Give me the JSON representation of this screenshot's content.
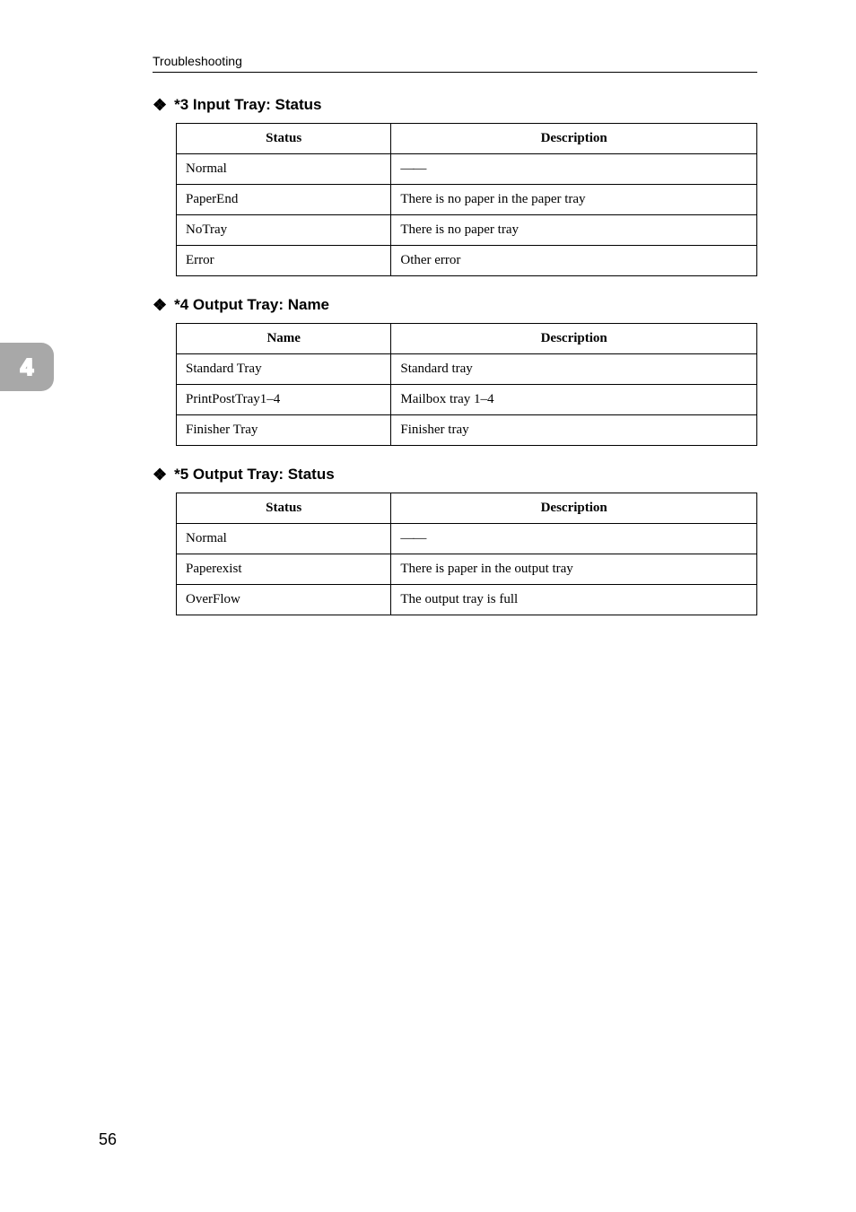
{
  "running_header": "Troubleshooting",
  "side_tab": "4",
  "page_number": "56",
  "sections": {
    "s3": {
      "heading": "*3 Input Tray: Status",
      "col_left": "Status",
      "col_right": "Description",
      "rows": [
        {
          "left": "Normal",
          "right": "——"
        },
        {
          "left": "PaperEnd",
          "right": "There is no paper in the paper tray"
        },
        {
          "left": "NoTray",
          "right": "There is no paper tray"
        },
        {
          "left": "Error",
          "right": "Other error"
        }
      ]
    },
    "s4": {
      "heading": "*4 Output Tray: Name",
      "col_left": "Name",
      "col_right": "Description",
      "rows": [
        {
          "left": "Standard Tray",
          "right": "Standard tray"
        },
        {
          "left": "PrintPostTray1–4",
          "right": "Mailbox tray 1–4"
        },
        {
          "left": "Finisher Tray",
          "right": "Finisher tray"
        }
      ]
    },
    "s5": {
      "heading": "*5 Output Tray: Status",
      "col_left": "Status",
      "col_right": "Description",
      "rows": [
        {
          "left": "Normal",
          "right": "——"
        },
        {
          "left": "Paperexist",
          "right": "There is paper in the output tray"
        },
        {
          "left": "OverFlow",
          "right": "The output tray is full"
        }
      ]
    }
  }
}
